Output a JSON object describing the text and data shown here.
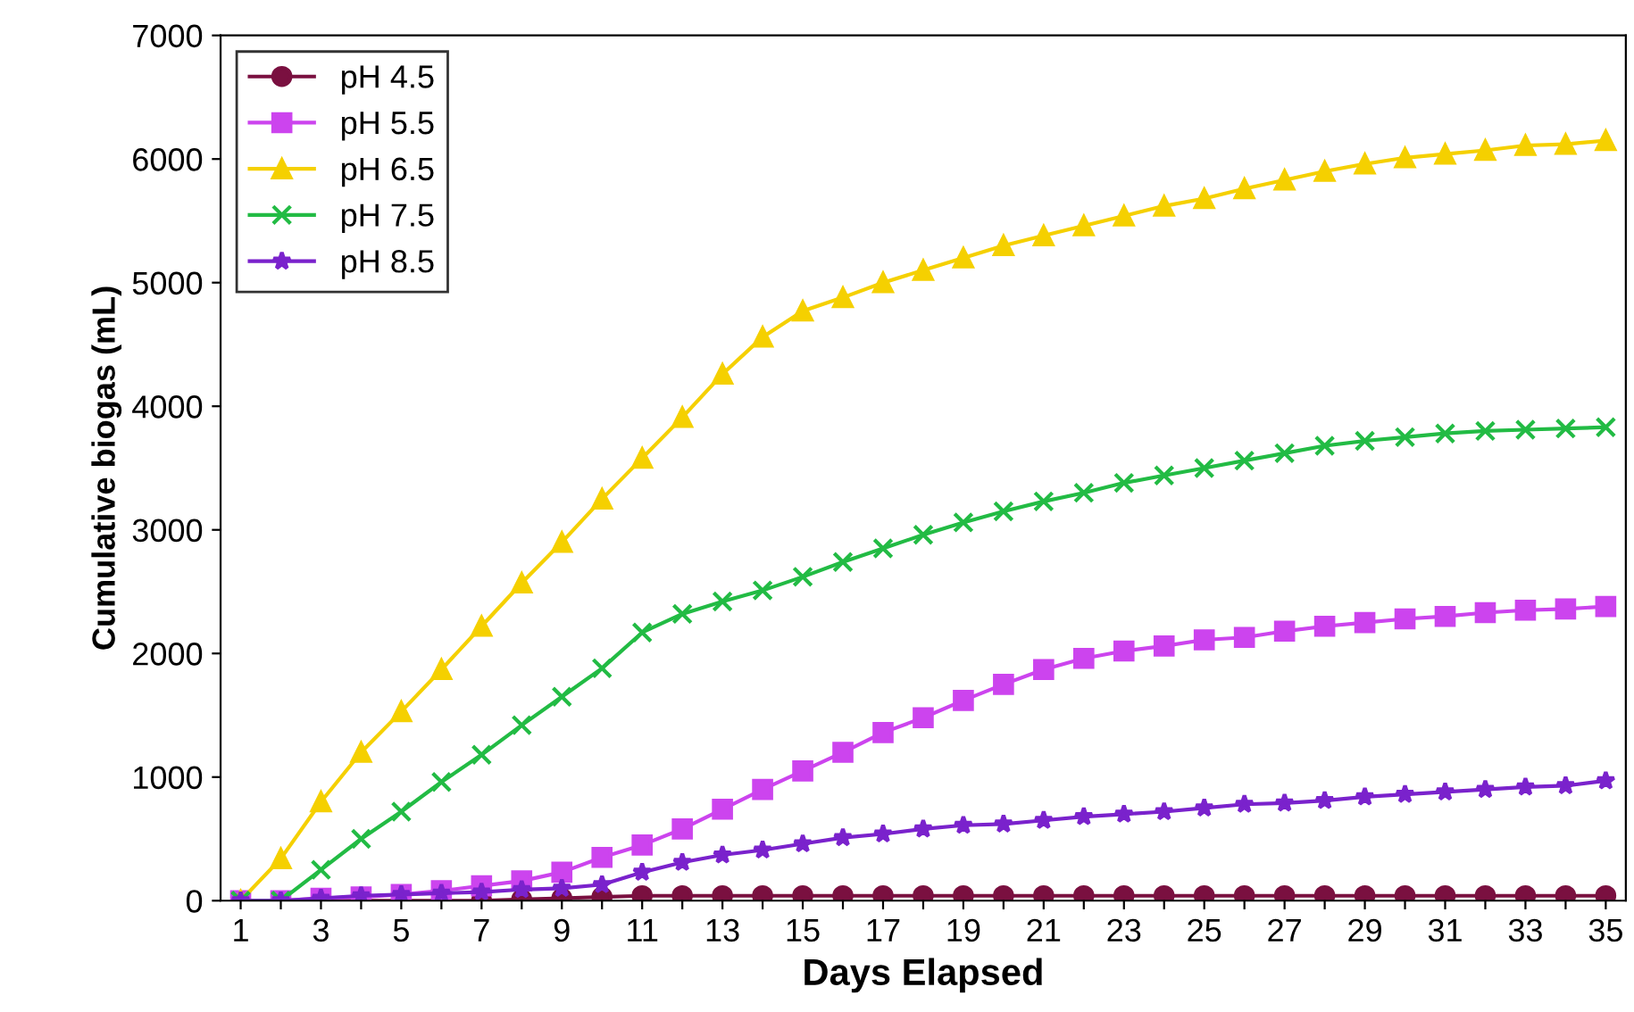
{
  "chart_data": {
    "type": "line",
    "xlabel": "Days Elapsed",
    "ylabel": "Cumulative biogas (mL)",
    "x": [
      1,
      2,
      3,
      4,
      5,
      6,
      7,
      8,
      9,
      10,
      11,
      12,
      13,
      14,
      15,
      16,
      17,
      18,
      19,
      20,
      21,
      22,
      23,
      24,
      25,
      26,
      27,
      28,
      29,
      30,
      31,
      32,
      33,
      34,
      35
    ],
    "series": [
      {
        "name": "pH 4.5",
        "color": "#7a1040",
        "marker": "circle",
        "values": [
          null,
          null,
          0,
          0,
          0,
          0,
          0,
          10,
          20,
          30,
          40,
          40,
          40,
          40,
          40,
          40,
          40,
          40,
          40,
          40,
          40,
          40,
          40,
          40,
          40,
          40,
          40,
          40,
          40,
          40,
          40,
          40,
          40,
          40,
          40
        ]
      },
      {
        "name": "pH 5.5",
        "color": "#cc44ee",
        "marker": "square",
        "values": [
          0,
          0,
          20,
          30,
          50,
          80,
          120,
          160,
          230,
          350,
          450,
          580,
          740,
          900,
          1050,
          1200,
          1360,
          1480,
          1620,
          1750,
          1870,
          1960,
          2020,
          2060,
          2110,
          2130,
          2180,
          2220,
          2250,
          2280,
          2300,
          2330,
          2350,
          2360,
          2380
        ]
      },
      {
        "name": "pH 6.5",
        "color": "#f5d000",
        "marker": "triangle",
        "values": [
          0,
          340,
          800,
          1200,
          1530,
          1870,
          2220,
          2570,
          2900,
          3250,
          3580,
          3910,
          4260,
          4560,
          4770,
          4880,
          5000,
          5100,
          5200,
          5300,
          5380,
          5460,
          5540,
          5620,
          5680,
          5760,
          5830,
          5900,
          5960,
          6010,
          6040,
          6070,
          6110,
          6120,
          6150
        ]
      },
      {
        "name": "pH 7.5",
        "color": "#22bb44",
        "marker": "cross",
        "values": [
          0,
          0,
          250,
          500,
          720,
          960,
          1180,
          1420,
          1650,
          1880,
          2170,
          2320,
          2420,
          2510,
          2620,
          2740,
          2850,
          2960,
          3060,
          3150,
          3230,
          3300,
          3380,
          3440,
          3500,
          3560,
          3620,
          3680,
          3720,
          3750,
          3780,
          3800,
          3810,
          3820,
          3830
        ]
      },
      {
        "name": "pH 8.5",
        "color": "#7a22cc",
        "marker": "star",
        "values": [
          0,
          0,
          20,
          40,
          50,
          60,
          70,
          90,
          100,
          130,
          230,
          310,
          370,
          410,
          460,
          510,
          540,
          580,
          610,
          620,
          650,
          680,
          700,
          720,
          750,
          780,
          790,
          810,
          840,
          860,
          880,
          900,
          920,
          930,
          970
        ]
      }
    ],
    "xlim": [
      0.5,
      35.5
    ],
    "xticks": [
      1,
      {
        "value": 2,
        "label": null
      },
      3,
      {
        "value": 4,
        "label": null
      },
      5,
      {
        "value": 6,
        "label": null
      },
      7,
      {
        "value": 8,
        "label": null
      },
      9,
      {
        "value": 10,
        "label": null
      },
      11,
      {
        "value": 12,
        "label": null
      },
      13,
      {
        "value": 14,
        "label": null
      },
      15,
      {
        "value": 16,
        "label": null
      },
      17,
      {
        "value": 18,
        "label": null
      },
      19,
      {
        "value": 20,
        "label": null
      },
      21,
      {
        "value": 22,
        "label": null
      },
      23,
      {
        "value": 24,
        "label": null
      },
      25,
      {
        "value": 26,
        "label": null
      },
      27,
      {
        "value": 28,
        "label": null
      },
      29,
      {
        "value": 30,
        "label": null
      },
      31,
      {
        "value": 32,
        "label": null
      },
      33,
      {
        "value": 34,
        "label": null
      },
      35
    ],
    "ylim": [
      0,
      7000
    ],
    "yticks": [
      0,
      1000,
      2000,
      3000,
      4000,
      5000,
      6000,
      7000
    ],
    "legend": "top left",
    "line_style": "solid"
  }
}
